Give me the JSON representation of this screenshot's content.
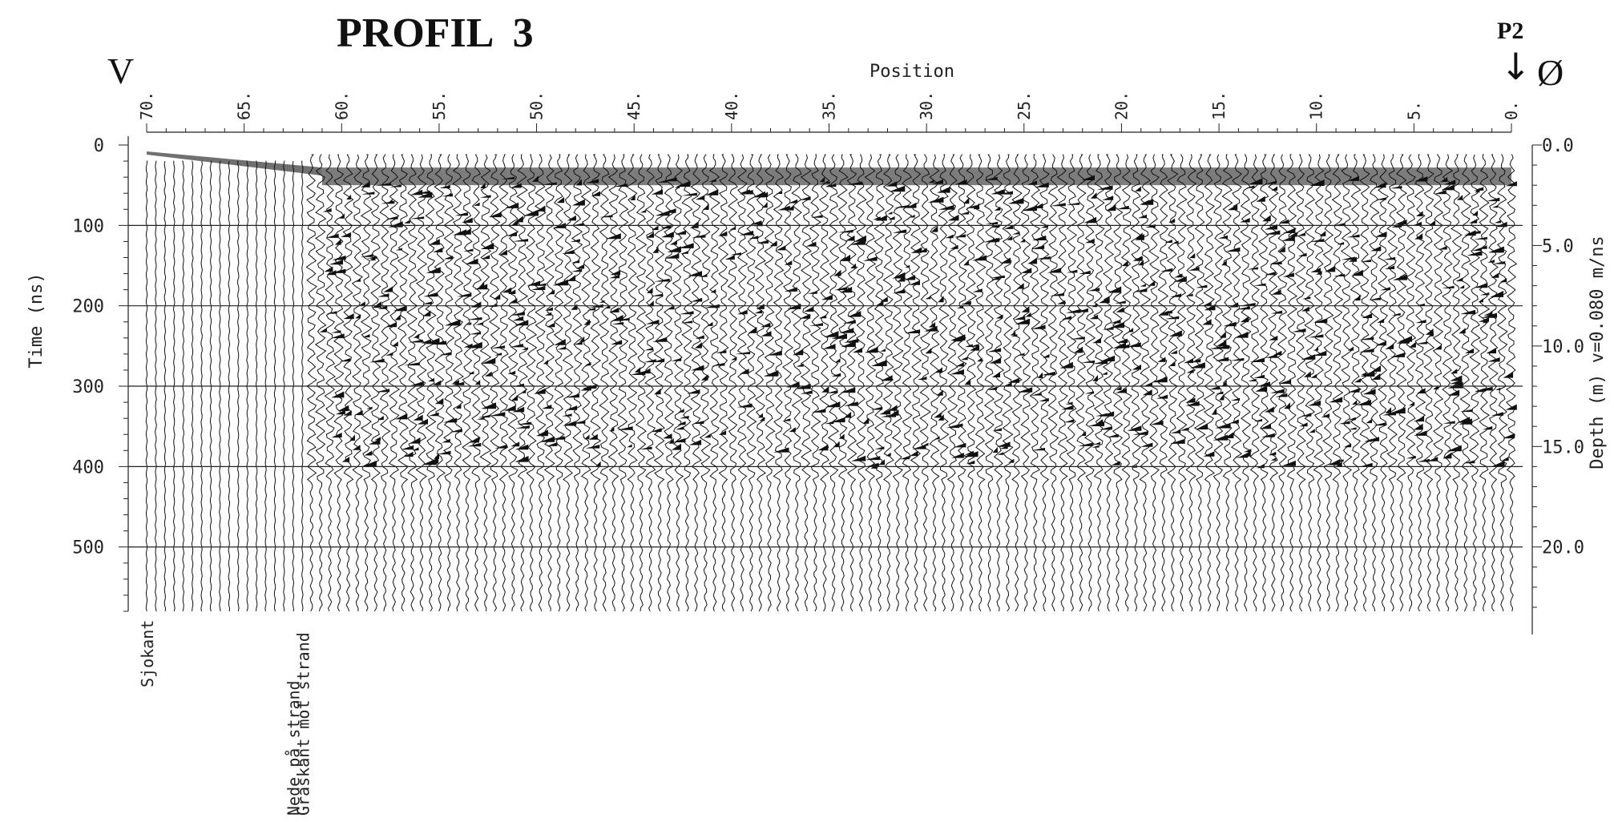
{
  "title": "PROFIL  3",
  "direction_left": "V",
  "direction_right": "Ø",
  "marker": {
    "label": "P2",
    "arrow": "↓"
  },
  "chart_data": {
    "type": "radargram",
    "xlabel": "Position",
    "ylabel": "Time (ns)",
    "y2label": "Depth (m) v=0.080 m/ns",
    "x_range": [
      70,
      0
    ],
    "x_ticks": [
      "70.",
      "65.",
      "60.",
      "55.",
      "50.",
      "45.",
      "40.",
      "35.",
      "30.",
      "25.",
      "20.",
      "15.",
      "10.",
      "5.",
      "0."
    ],
    "x_tick_values": [
      70,
      65,
      60,
      55,
      50,
      45,
      40,
      35,
      30,
      25,
      20,
      15,
      10,
      5,
      0
    ],
    "y_range": [
      0,
      580
    ],
    "y_ticks": [
      "0",
      "100",
      "200",
      "300",
      "400",
      "500"
    ],
    "y_tick_values": [
      0,
      100,
      200,
      300,
      400,
      500
    ],
    "depth_ticks": [
      "0.0",
      "5.0",
      "10.0",
      "15.0",
      "20.0"
    ],
    "depth_tick_values": [
      0,
      5,
      10,
      15,
      20
    ],
    "velocity_m_per_ns": 0.08,
    "grid_lines_time": [
      100,
      200,
      300,
      400,
      500
    ],
    "markers": [
      {
        "position": 70,
        "label": "Sjokant"
      },
      {
        "position": 62.5,
        "label": "Nede på strand"
      },
      {
        "position": 62,
        "label": "Graskant mot strand"
      }
    ]
  }
}
